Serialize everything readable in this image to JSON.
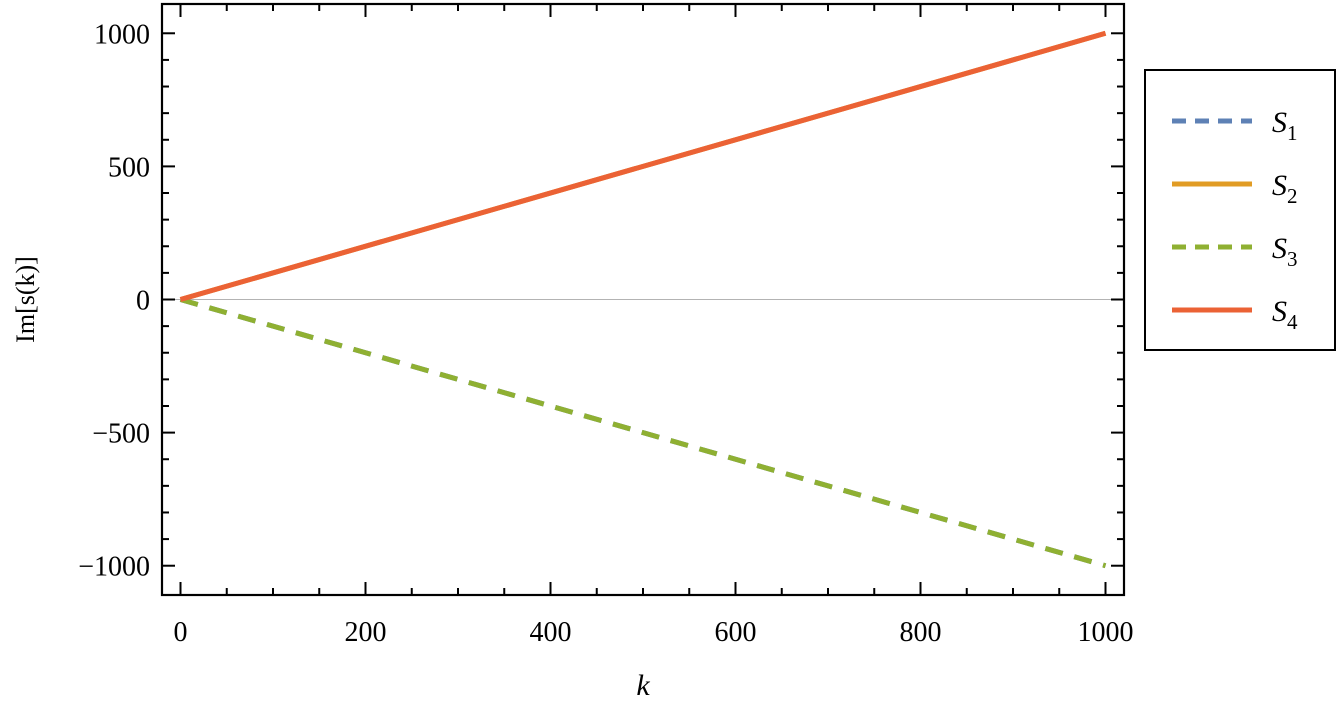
{
  "chart_data": {
    "type": "line",
    "xlabel": "k",
    "ylabel": "Im[s(k)]",
    "xlim": [
      -20,
      1020
    ],
    "ylim": [
      -1110,
      1110
    ],
    "xticks": [
      0,
      200,
      400,
      600,
      800,
      1000
    ],
    "xtick_labels": [
      "0",
      "200",
      "400",
      "600",
      "800",
      "1000"
    ],
    "yticks": [
      -1000,
      -500,
      0,
      500,
      1000
    ],
    "ytick_labels": [
      "−1000",
      "−500",
      "0",
      "500",
      "1000"
    ],
    "grid": false,
    "zero_line": true,
    "legend_position": "right",
    "series": [
      {
        "name": "S",
        "sub": "1",
        "color": "#5E81B5",
        "dash": "dashed",
        "x": [
          0,
          1000
        ],
        "y": [
          0,
          -1000
        ]
      },
      {
        "name": "S",
        "sub": "2",
        "color": "#E19C24",
        "dash": "solid",
        "x": [
          0,
          1000
        ],
        "y": [
          0,
          1000
        ]
      },
      {
        "name": "S",
        "sub": "3",
        "color": "#8FB032",
        "dash": "dashed",
        "x": [
          0,
          1000
        ],
        "y": [
          0,
          -1000
        ]
      },
      {
        "name": "S",
        "sub": "4",
        "color": "#EB6235",
        "dash": "solid",
        "x": [
          0,
          1000
        ],
        "y": [
          0,
          1000
        ]
      }
    ]
  }
}
